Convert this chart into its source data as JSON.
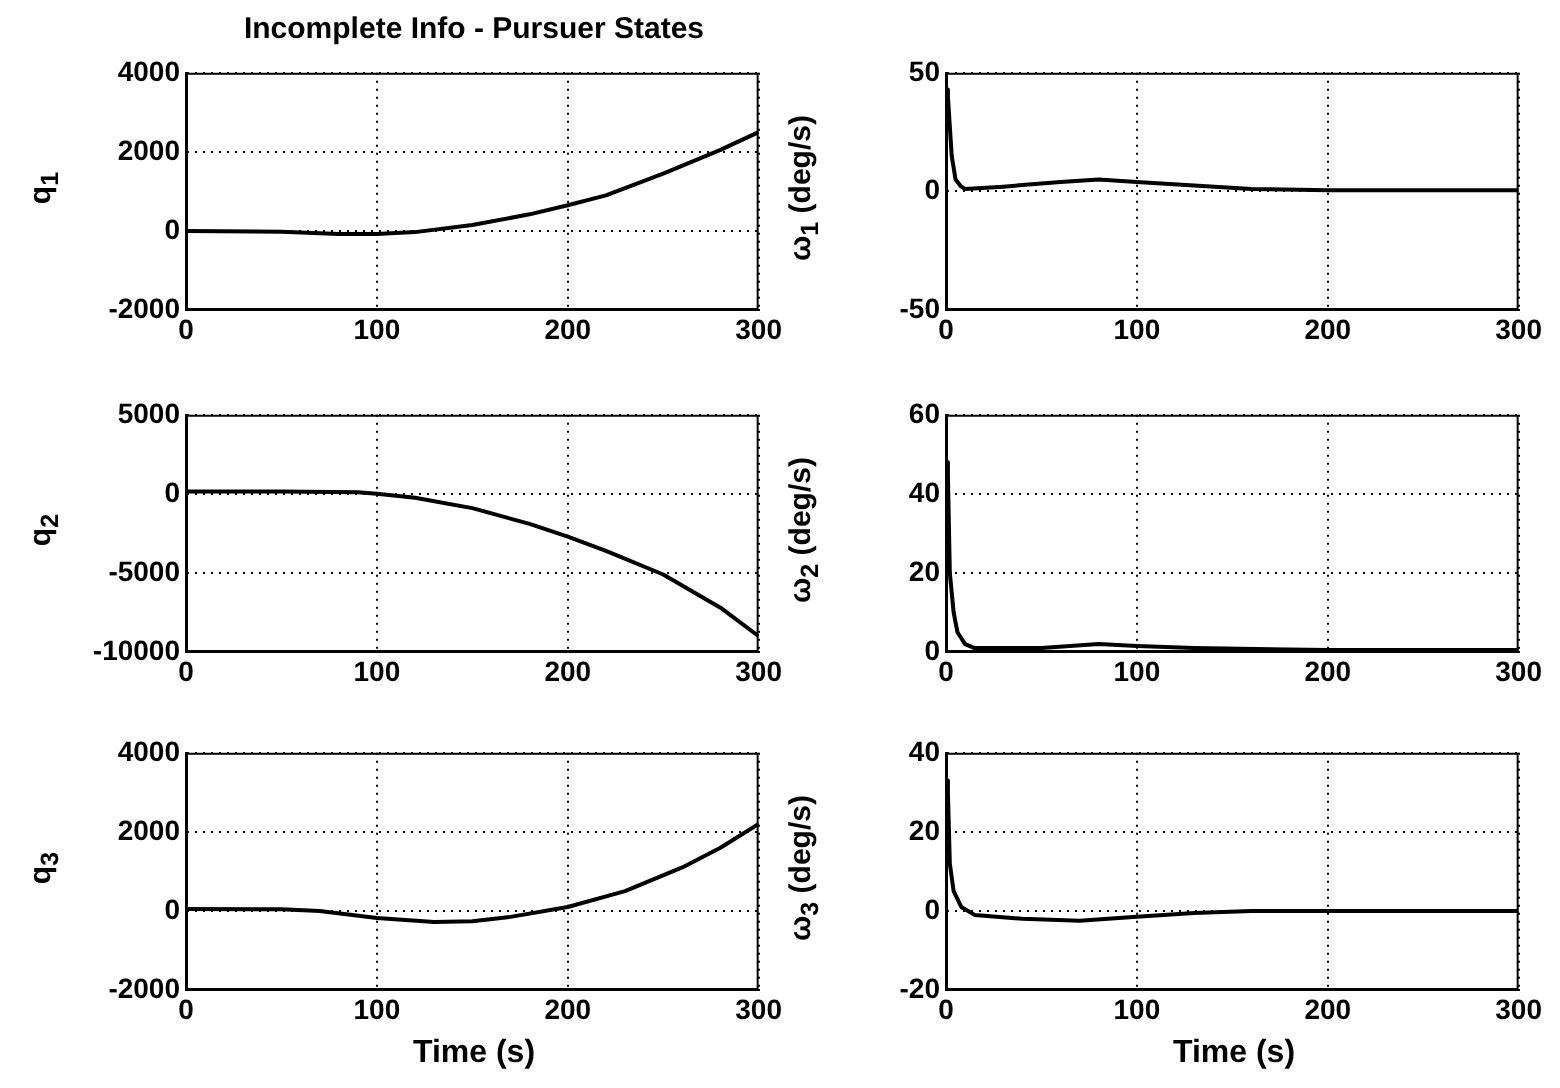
{
  "chart_data": [
    {
      "type": "line",
      "title": "Incomplete Info - Pursuer States",
      "ylabel": "q$_{1}$",
      "color": "#000000",
      "marker": "none",
      "grid": true,
      "xlim": [
        0,
        300
      ],
      "xticks": [
        0,
        100,
        200,
        300
      ],
      "ylim": [
        -2000,
        4000
      ],
      "yticks": [
        -2000,
        0,
        2000,
        4000
      ],
      "x": [
        0,
        50,
        80,
        100,
        120,
        150,
        180,
        200,
        220,
        250,
        280,
        300
      ],
      "values": [
        0,
        -20,
        -80,
        -80,
        -30,
        150,
        420,
        650,
        900,
        1450,
        2050,
        2500
      ]
    },
    {
      "type": "line",
      "ylabel": "ω$_{1}$ (deg/s)",
      "color": "#000000",
      "marker": "none",
      "grid": true,
      "xlim": [
        0,
        300
      ],
      "xticks": [
        0,
        100,
        200,
        300
      ],
      "ylim": [
        -50,
        50
      ],
      "yticks": [
        -50,
        0,
        50
      ],
      "x": [
        0,
        1,
        3,
        5,
        8,
        10,
        30,
        60,
        80,
        100,
        130,
        160,
        200,
        300
      ],
      "values": [
        43,
        40,
        15,
        5,
        2,
        1,
        2,
        4,
        5,
        4,
        2.5,
        1,
        0.5,
        0.5
      ]
    },
    {
      "type": "line",
      "ylabel": "q$_{2}$",
      "color": "#000000",
      "marker": "none",
      "grid": true,
      "xlim": [
        0,
        300
      ],
      "xticks": [
        0,
        100,
        200,
        300
      ],
      "ylim": [
        -10000,
        5000
      ],
      "yticks": [
        -10000,
        -5000,
        0,
        5000
      ],
      "x": [
        0,
        50,
        90,
        100,
        120,
        150,
        180,
        200,
        220,
        250,
        280,
        300
      ],
      "values": [
        150,
        150,
        100,
        0,
        -250,
        -900,
        -1900,
        -2700,
        -3600,
        -5100,
        -7200,
        -9000
      ]
    },
    {
      "type": "line",
      "ylabel": "ω$_{2}$ (deg/s)",
      "color": "#000000",
      "marker": "none",
      "grid": true,
      "xlim": [
        0,
        300
      ],
      "xticks": [
        0,
        100,
        200,
        300
      ],
      "ylim": [
        0,
        60
      ],
      "yticks": [
        0,
        20,
        40,
        60
      ],
      "x": [
        0,
        1,
        2,
        4,
        6,
        10,
        15,
        50,
        80,
        100,
        130,
        200,
        300
      ],
      "values": [
        48,
        45,
        20,
        10,
        5,
        2,
        1,
        1,
        2,
        1.5,
        1,
        0.5,
        0.5
      ]
    },
    {
      "type": "line",
      "ylabel": "q$_{3}$",
      "xlabel": "Time (s)",
      "color": "#000000",
      "marker": "none",
      "grid": true,
      "xlim": [
        0,
        300
      ],
      "xticks": [
        0,
        100,
        200,
        300
      ],
      "ylim": [
        -2000,
        4000
      ],
      "yticks": [
        -2000,
        0,
        2000,
        4000
      ],
      "x": [
        0,
        50,
        70,
        100,
        130,
        150,
        170,
        200,
        230,
        260,
        280,
        300
      ],
      "values": [
        50,
        40,
        0,
        -180,
        -280,
        -260,
        -150,
        100,
        500,
        1100,
        1600,
        2200
      ]
    },
    {
      "type": "line",
      "ylabel": "ω$_{3}$ (deg/s)",
      "xlabel": "Time (s)",
      "color": "#000000",
      "marker": "none",
      "grid": true,
      "xlim": [
        0,
        300
      ],
      "xticks": [
        0,
        100,
        200,
        300
      ],
      "ylim": [
        -20,
        40
      ],
      "yticks": [
        -20,
        0,
        20,
        40
      ],
      "x": [
        0,
        1,
        2,
        4,
        8,
        15,
        40,
        70,
        100,
        130,
        160,
        300
      ],
      "values": [
        33,
        30,
        12,
        5,
        1,
        -1,
        -2,
        -2.5,
        -1.5,
        -0.5,
        0,
        0
      ]
    }
  ]
}
